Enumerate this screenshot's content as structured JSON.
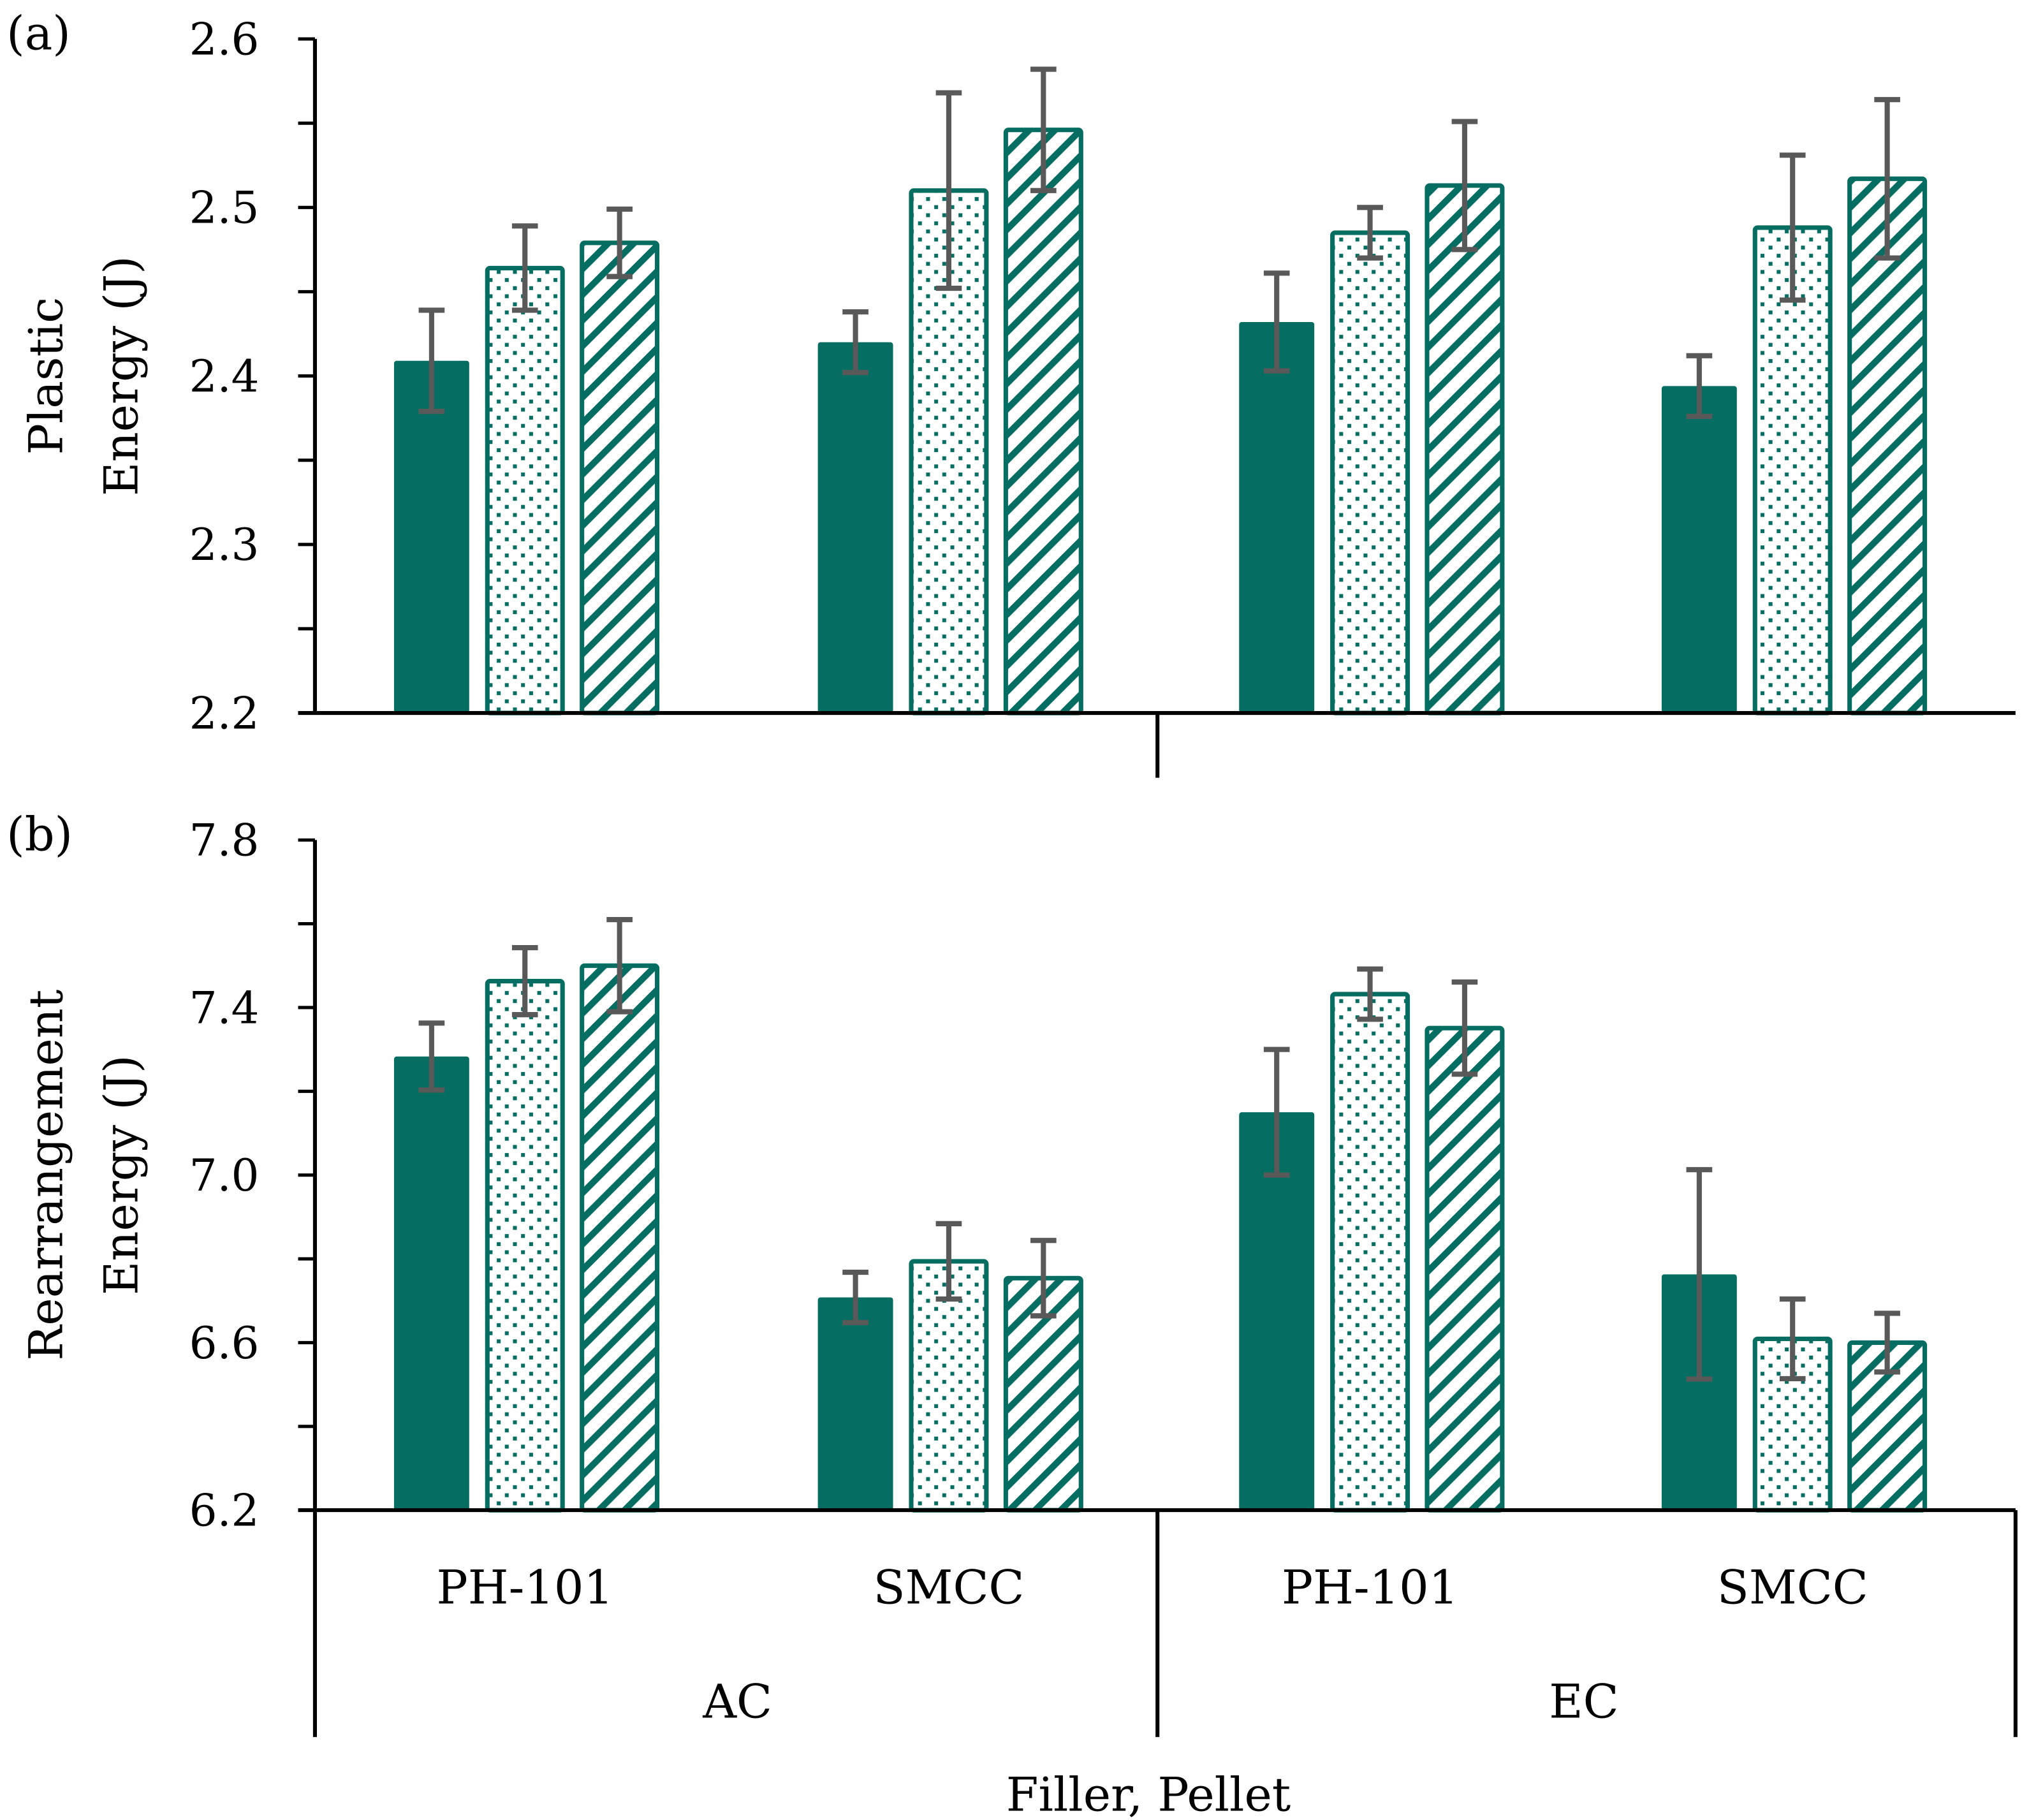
{
  "colors": {
    "bar": "#066d62",
    "error": "#595959",
    "axis": "#000000"
  },
  "chart_data": [
    {
      "type": "bar",
      "panel_label": "(a)",
      "ylabel_lines": [
        "Plastic",
        "Energy (J)"
      ],
      "ylim": [
        2.2,
        2.6
      ],
      "yticks": [
        "2.2",
        "2.3",
        "2.4",
        "2.5",
        "2.6"
      ],
      "ytick_values": [
        2.2,
        2.3,
        2.4,
        2.5,
        2.6
      ],
      "minor_step": 0.05,
      "categories": [
        "AC PH-101",
        "AC SMCC",
        "EC PH-101",
        "EC SMCC"
      ],
      "series": [
        {
          "name": "solid",
          "pattern": "solid",
          "values": [
            2.409,
            2.42,
            2.432,
            2.394
          ],
          "errors": [
            0.03,
            0.018,
            0.029,
            0.018
          ]
        },
        {
          "name": "dotted",
          "pattern": "dots",
          "values": [
            2.464,
            2.51,
            2.485,
            2.488
          ],
          "errors": [
            0.025,
            0.058,
            0.015,
            0.043
          ]
        },
        {
          "name": "hatched",
          "pattern": "hatch",
          "values": [
            2.479,
            2.546,
            2.513,
            2.517
          ],
          "errors": [
            0.02,
            0.036,
            0.038,
            0.047
          ]
        }
      ]
    },
    {
      "type": "bar",
      "panel_label": "(b)",
      "ylabel_lines": [
        "Rearrangement",
        "Energy (J)"
      ],
      "ylim": [
        6.2,
        7.8
      ],
      "yticks": [
        "6.2",
        "6.6",
        "7.0",
        "7.4",
        "7.8"
      ],
      "ytick_values": [
        6.2,
        6.6,
        7.0,
        7.4,
        7.8
      ],
      "minor_step": 0.2,
      "categories": [
        "AC PH-101",
        "AC SMCC",
        "EC PH-101",
        "EC SMCC"
      ],
      "series": [
        {
          "name": "solid",
          "pattern": "solid",
          "values": [
            7.283,
            6.708,
            7.15,
            6.763
          ],
          "errors": [
            0.08,
            0.06,
            0.15,
            0.25
          ]
        },
        {
          "name": "dotted",
          "pattern": "dots",
          "values": [
            7.463,
            6.794,
            7.432,
            6.609
          ],
          "errors": [
            0.08,
            0.09,
            0.06,
            0.095
          ]
        },
        {
          "name": "hatched",
          "pattern": "hatch",
          "values": [
            7.5,
            6.754,
            7.351,
            6.6
          ],
          "errors": [
            0.11,
            0.09,
            0.11,
            0.07
          ]
        }
      ]
    }
  ],
  "xaxis": {
    "fillers": [
      "PH-101",
      "SMCC",
      "PH-101",
      "SMCC"
    ],
    "pellets": [
      "AC",
      "EC"
    ],
    "title": "Filler, Pellet"
  }
}
